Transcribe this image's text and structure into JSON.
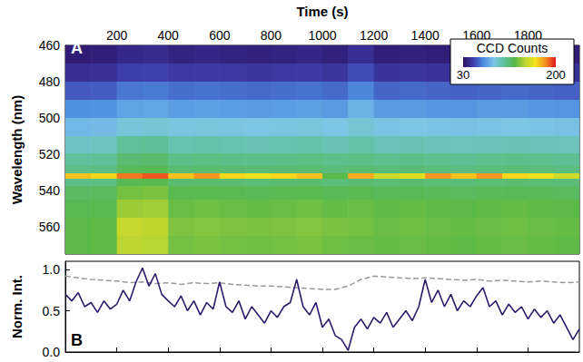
{
  "chart_data": [
    {
      "type": "heatmap",
      "label": "A",
      "x_label": "Time (s)",
      "y_label": "Wavelength (nm)",
      "xlim": [
        0,
        2000
      ],
      "xticks": [
        200,
        400,
        600,
        800,
        1000,
        1200,
        1400,
        1600,
        1800
      ],
      "ylim": [
        460,
        575
      ],
      "yticks": [
        460,
        480,
        500,
        520,
        540,
        560
      ],
      "grid": false,
      "x": [
        50,
        150,
        250,
        350,
        450,
        550,
        650,
        750,
        850,
        950,
        1050,
        1150,
        1250,
        1350,
        1450,
        1550,
        1650,
        1750,
        1850,
        1950
      ],
      "y": [
        465,
        475,
        485,
        495,
        505,
        515,
        524,
        529,
        532,
        535,
        540,
        550,
        560,
        570
      ],
      "cells": [
        [
          35,
          36,
          40,
          41,
          38,
          39,
          38,
          37,
          38,
          39,
          37,
          42,
          36,
          37,
          36,
          35,
          36,
          37,
          36,
          35
        ],
        [
          42,
          43,
          48,
          49,
          46,
          47,
          46,
          45,
          46,
          47,
          45,
          52,
          44,
          45,
          44,
          43,
          44,
          45,
          44,
          43
        ],
        [
          55,
          56,
          62,
          63,
          60,
          61,
          60,
          59,
          60,
          61,
          59,
          66,
          58,
          59,
          58,
          57,
          58,
          59,
          58,
          57
        ],
        [
          68,
          69,
          75,
          76,
          73,
          74,
          73,
          72,
          73,
          74,
          72,
          80,
          72,
          72,
          71,
          70,
          72,
          72,
          71,
          70
        ],
        [
          82,
          83,
          90,
          91,
          88,
          89,
          88,
          87,
          88,
          89,
          87,
          92,
          86,
          87,
          86,
          85,
          86,
          87,
          86,
          85
        ],
        [
          95,
          96,
          105,
          106,
          100,
          101,
          100,
          99,
          100,
          101,
          99,
          102,
          98,
          99,
          98,
          97,
          98,
          99,
          98,
          97
        ],
        [
          105,
          106,
          115,
          116,
          110,
          111,
          110,
          109,
          110,
          111,
          109,
          110,
          108,
          109,
          108,
          107,
          108,
          109,
          108,
          107
        ],
        [
          110,
          111,
          120,
          121,
          115,
          116,
          115,
          114,
          115,
          116,
          113,
          115,
          113,
          114,
          113,
          112,
          113,
          114,
          113,
          112
        ],
        [
          170,
          165,
          185,
          190,
          170,
          180,
          165,
          160,
          165,
          170,
          125,
          175,
          150,
          155,
          180,
          170,
          180,
          165,
          160,
          150
        ],
        [
          110,
          111,
          122,
          123,
          115,
          116,
          115,
          114,
          115,
          116,
          113,
          115,
          114,
          115,
          114,
          113,
          114,
          115,
          114,
          113
        ],
        [
          118,
          119,
          130,
          131,
          122,
          123,
          122,
          121,
          122,
          123,
          121,
          122,
          120,
          121,
          120,
          119,
          120,
          121,
          120,
          119
        ],
        [
          122,
          123,
          138,
          139,
          128,
          129,
          128,
          127,
          128,
          129,
          127,
          128,
          126,
          127,
          126,
          125,
          126,
          127,
          126,
          125
        ],
        [
          125,
          126,
          148,
          146,
          132,
          133,
          132,
          131,
          132,
          133,
          131,
          130,
          128,
          129,
          128,
          127,
          128,
          129,
          128,
          127
        ],
        [
          125,
          126,
          145,
          144,
          130,
          131,
          130,
          129,
          130,
          131,
          129,
          128,
          127,
          128,
          127,
          126,
          127,
          128,
          127,
          126
        ]
      ],
      "colorbar": {
        "title": "CCD Counts",
        "range": [
          30,
          200
        ],
        "ticks": [
          30,
          200
        ],
        "colors": [
          "#2b0f5e",
          "#3f3fb0",
          "#4d8fe0",
          "#7cc6e6",
          "#5fc09a",
          "#57b848",
          "#b6d432",
          "#f5e41c",
          "#f39020",
          "#e0161c"
        ]
      }
    },
    {
      "type": "line",
      "label": "B",
      "y_label": "Norm. Int.",
      "xlim": [
        0,
        2000
      ],
      "xticks": [
        200,
        400,
        600,
        800,
        1000,
        1200,
        1400,
        1600,
        1800
      ],
      "ylim": [
        0,
        1.1
      ],
      "yticks": [
        {
          "value": 0,
          "label": "0.0"
        },
        {
          "value": 0.5,
          "label": "0.5"
        },
        {
          "value": 1,
          "label": "1.0"
        }
      ],
      "grid": false,
      "tick_labels": "y",
      "series": [
        {
          "color": "#2e1a6b",
          "line_style": "solid",
          "x": [
            0,
            25,
            50,
            75,
            100,
            125,
            150,
            175,
            200,
            225,
            250,
            275,
            300,
            325,
            350,
            375,
            400,
            425,
            450,
            475,
            500,
            525,
            550,
            575,
            600,
            625,
            650,
            675,
            700,
            725,
            750,
            775,
            800,
            825,
            850,
            875,
            900,
            925,
            950,
            975,
            1000,
            1025,
            1050,
            1075,
            1100,
            1125,
            1150,
            1175,
            1200,
            1225,
            1250,
            1275,
            1300,
            1325,
            1350,
            1375,
            1400,
            1425,
            1450,
            1475,
            1500,
            1525,
            1550,
            1575,
            1600,
            1625,
            1650,
            1675,
            1700,
            1725,
            1750,
            1775,
            1800,
            1825,
            1850,
            1875,
            1900,
            1925,
            1950,
            1975,
            2000
          ],
          "values": [
            0.7,
            0.62,
            0.72,
            0.55,
            0.6,
            0.48,
            0.62,
            0.52,
            0.58,
            0.75,
            0.62,
            0.85,
            1.02,
            0.8,
            0.95,
            0.7,
            0.62,
            0.55,
            0.68,
            0.5,
            0.62,
            0.45,
            0.6,
            0.52,
            0.85,
            0.55,
            0.48,
            0.62,
            0.4,
            0.55,
            0.45,
            0.35,
            0.5,
            0.42,
            0.55,
            0.6,
            0.88,
            0.55,
            0.45,
            0.6,
            0.3,
            0.4,
            0.2,
            0.15,
            0.02,
            0.3,
            0.4,
            0.28,
            0.42,
            0.35,
            0.48,
            0.3,
            0.4,
            0.5,
            0.38,
            0.55,
            0.88,
            0.6,
            0.75,
            0.55,
            0.7,
            0.5,
            0.62,
            0.55,
            0.68,
            0.78,
            0.55,
            0.62,
            0.45,
            0.58,
            0.48,
            0.55,
            0.4,
            0.52,
            0.42,
            0.5,
            0.35,
            0.45,
            0.3,
            0.15,
            0.28
          ]
        },
        {
          "color": "#999999",
          "line_style": "dashed",
          "x": [
            0,
            50,
            100,
            150,
            200,
            250,
            300,
            350,
            400,
            450,
            500,
            550,
            600,
            650,
            700,
            750,
            800,
            850,
            900,
            950,
            1000,
            1050,
            1100,
            1150,
            1200,
            1250,
            1300,
            1350,
            1400,
            1450,
            1500,
            1550,
            1600,
            1650,
            1700,
            1750,
            1800,
            1850,
            1900,
            1950,
            2000
          ],
          "values": [
            0.92,
            0.9,
            0.88,
            0.87,
            0.86,
            0.84,
            0.85,
            0.83,
            0.84,
            0.82,
            0.84,
            0.83,
            0.84,
            0.82,
            0.81,
            0.8,
            0.8,
            0.79,
            0.78,
            0.77,
            0.76,
            0.76,
            0.8,
            0.88,
            0.92,
            0.91,
            0.9,
            0.89,
            0.9,
            0.89,
            0.88,
            0.87,
            0.88,
            0.86,
            0.87,
            0.86,
            0.85,
            0.86,
            0.85,
            0.84,
            0.85
          ]
        }
      ]
    }
  ]
}
